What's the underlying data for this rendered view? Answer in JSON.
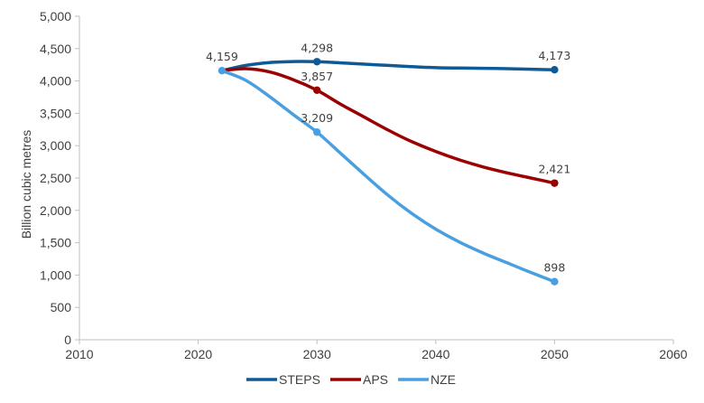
{
  "chart_data": {
    "type": "line",
    "title": "",
    "xlabel": "",
    "ylabel": "Billion cubic metres",
    "xlim": [
      2010,
      2060
    ],
    "ylim": [
      0,
      5000
    ],
    "x_ticks": [
      "2010",
      "2020",
      "2030",
      "2040",
      "2050",
      "2060"
    ],
    "y_ticks": [
      "0",
      "500",
      "1,000",
      "1,500",
      "2,000",
      "2,500",
      "3,000",
      "3,500",
      "4,000",
      "4,500",
      "5,000"
    ],
    "grid": false,
    "legend_position": "bottom",
    "series": [
      {
        "name": "STEPS",
        "color": "#0e5a96",
        "x": [
          2022,
          2024,
          2026,
          2028,
          2030,
          2032,
          2034,
          2036,
          2038,
          2040,
          2042,
          2044,
          2046,
          2048,
          2050
        ],
        "y": [
          4159,
          4240,
          4285,
          4300,
          4298,
          4280,
          4260,
          4240,
          4220,
          4205,
          4200,
          4195,
          4190,
          4182,
          4173
        ],
        "markers": [
          {
            "x": 2030,
            "y": 4298,
            "label": "4,298"
          },
          {
            "x": 2050,
            "y": 4173,
            "label": "4,173"
          }
        ]
      },
      {
        "name": "APS",
        "color": "#9a0000",
        "x": [
          2022,
          2024,
          2026,
          2028,
          2030,
          2032,
          2034,
          2036,
          2038,
          2040,
          2042,
          2044,
          2046,
          2048,
          2050
        ],
        "y": [
          4159,
          4190,
          4140,
          4020,
          3857,
          3640,
          3440,
          3240,
          3060,
          2910,
          2780,
          2670,
          2580,
          2500,
          2421
        ],
        "markers": [
          {
            "x": 2030,
            "y": 3857,
            "label": "3,857"
          },
          {
            "x": 2050,
            "y": 2421,
            "label": "2,421"
          }
        ]
      },
      {
        "name": "NZE",
        "color": "#4a9fe0",
        "x": [
          2022,
          2024,
          2026,
          2028,
          2030,
          2032,
          2034,
          2036,
          2038,
          2040,
          2042,
          2044,
          2046,
          2048,
          2050
        ],
        "y": [
          4159,
          4010,
          3760,
          3480,
          3209,
          2880,
          2550,
          2230,
          1950,
          1710,
          1510,
          1340,
          1190,
          1040,
          898
        ],
        "markers": [
          {
            "x": 2022,
            "y": 4159,
            "label": "4,159"
          },
          {
            "x": 2030,
            "y": 3209,
            "label": "3,209"
          },
          {
            "x": 2050,
            "y": 898,
            "label": "898"
          }
        ]
      }
    ]
  }
}
